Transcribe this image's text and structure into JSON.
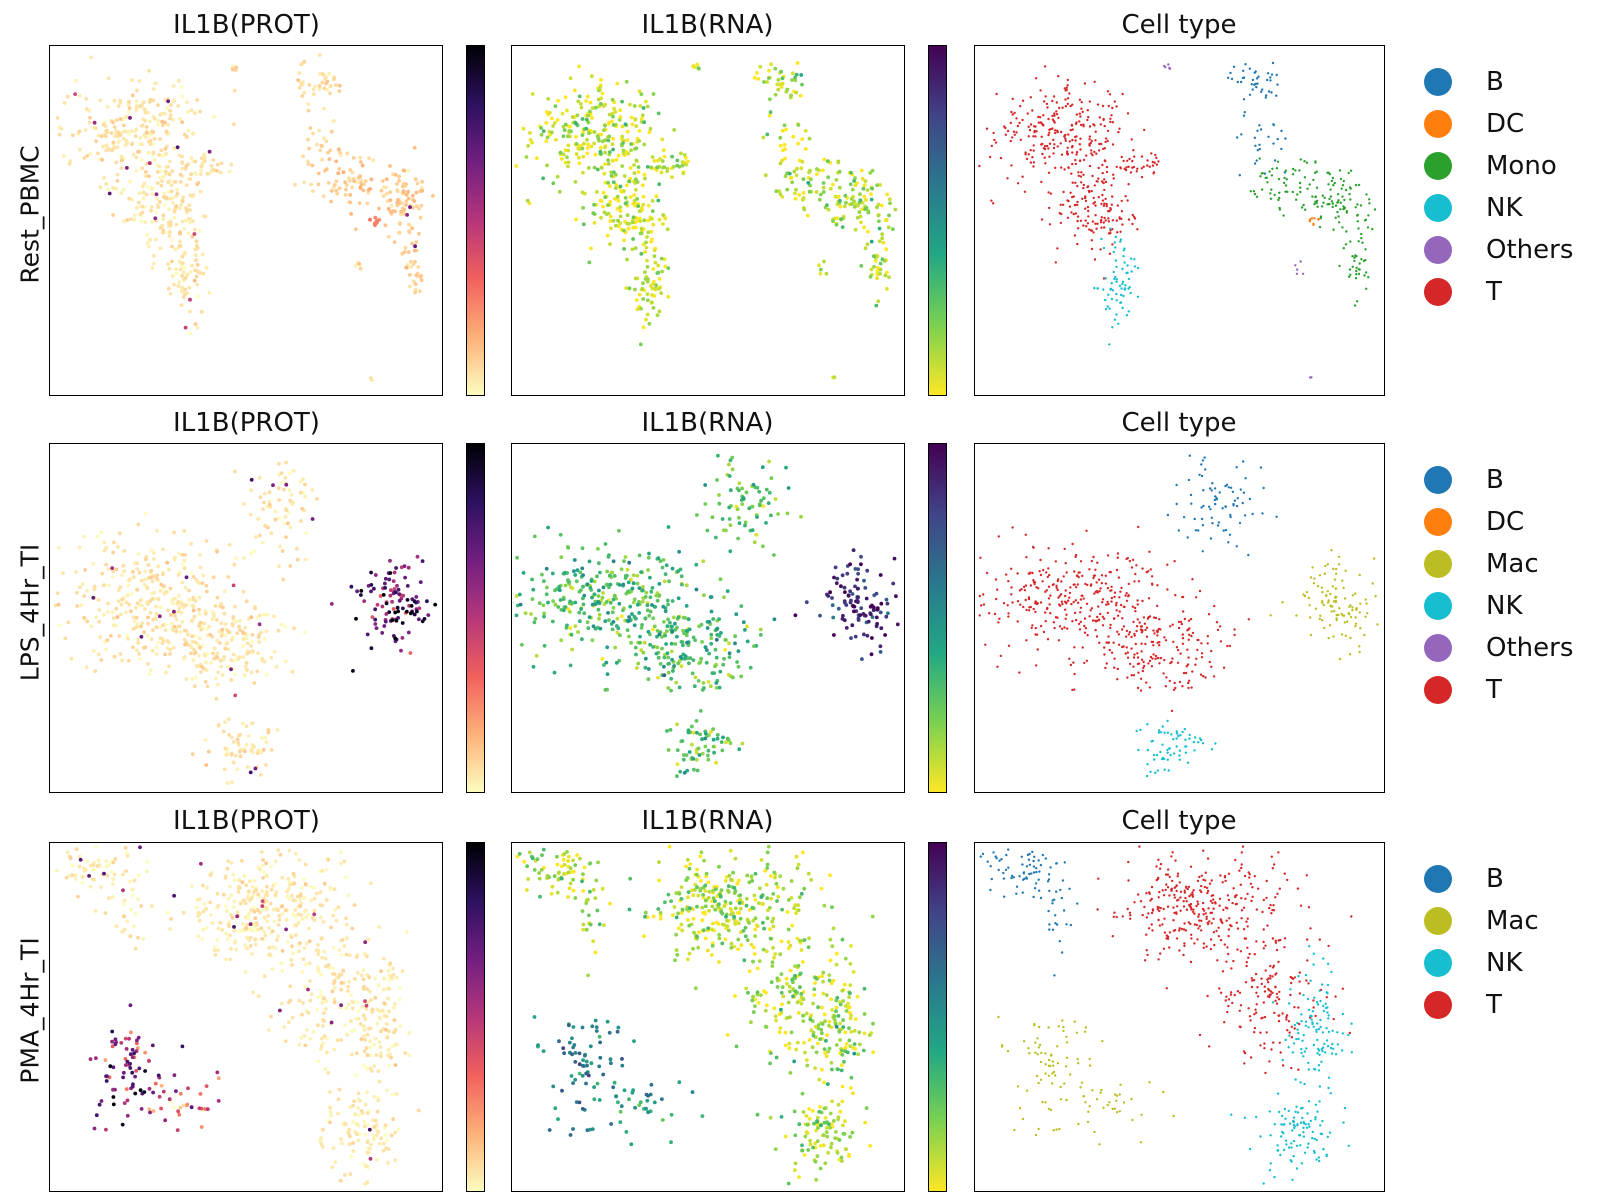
{
  "rows": [
    {
      "label": "Rest_PBMC",
      "titles": {
        "prot": "IL1B(PROT)",
        "rna": "IL1B(RNA)",
        "cell": "Cell type"
      },
      "legend": [
        {
          "label": "B",
          "color": "#1f77b4"
        },
        {
          "label": "DC",
          "color": "#ff7f0e"
        },
        {
          "label": "Mono",
          "color": "#2ca02c"
        },
        {
          "label": "NK",
          "color": "#17becf"
        },
        {
          "label": "Others",
          "color": "#9467bd"
        },
        {
          "label": "T",
          "color": "#d62728"
        }
      ]
    },
    {
      "label": "LPS_4Hr_TI",
      "titles": {
        "prot": "IL1B(PROT)",
        "rna": "IL1B(RNA)",
        "cell": "Cell type"
      },
      "legend": [
        {
          "label": "B",
          "color": "#1f77b4"
        },
        {
          "label": "DC",
          "color": "#ff7f0e"
        },
        {
          "label": "Mac",
          "color": "#bcbd22"
        },
        {
          "label": "NK",
          "color": "#17becf"
        },
        {
          "label": "Others",
          "color": "#9467bd"
        },
        {
          "label": "T",
          "color": "#d62728"
        }
      ]
    },
    {
      "label": "PMA_4Hr_TI",
      "titles": {
        "prot": "IL1B(PROT)",
        "rna": "IL1B(RNA)",
        "cell": "Cell type"
      },
      "legend": [
        {
          "label": "B",
          "color": "#1f77b4"
        },
        {
          "label": "Mac",
          "color": "#bcbd22"
        },
        {
          "label": "NK",
          "color": "#17becf"
        },
        {
          "label": "T",
          "color": "#d62728"
        }
      ]
    }
  ],
  "chart_data": {
    "type": "scatter",
    "colormaps": {
      "prot": "magma_r",
      "rna": "viridis_r"
    },
    "axes_ticks": false,
    "grid": false,
    "legend_placement": "right",
    "panels": [
      {
        "row": "Rest_PBMC",
        "clusters": [
          {
            "label": "T",
            "x": 0.22,
            "y": 0.75,
            "sx": 0.09,
            "sy": 0.07,
            "n": 260,
            "prot": 0.05,
            "rna": 0.06
          },
          {
            "label": "T",
            "x": 0.29,
            "y": 0.54,
            "sx": 0.05,
            "sy": 0.07,
            "n": 150,
            "prot": 0.05,
            "rna": 0.06
          },
          {
            "label": "T",
            "x": 0.4,
            "y": 0.66,
            "sx": 0.03,
            "sy": 0.02,
            "n": 30,
            "prot": 0.05,
            "rna": 0.06
          },
          {
            "label": "NK",
            "x": 0.35,
            "y": 0.35,
            "sx": 0.025,
            "sy": 0.07,
            "n": 70,
            "prot": 0.05,
            "rna": 0.1
          },
          {
            "label": "B",
            "x": 0.69,
            "y": 0.9,
            "sx": 0.03,
            "sy": 0.03,
            "n": 40,
            "prot": 0.07,
            "rna": 0.08
          },
          {
            "label": "B",
            "x": 0.7,
            "y": 0.72,
            "sx": 0.03,
            "sy": 0.05,
            "n": 25,
            "prot": 0.07,
            "rna": 0.08
          },
          {
            "label": "Mono",
            "x": 0.77,
            "y": 0.61,
            "sx": 0.05,
            "sy": 0.04,
            "n": 70,
            "prot": 0.1,
            "rna": 0.1
          },
          {
            "label": "Mono",
            "x": 0.9,
            "y": 0.55,
            "sx": 0.03,
            "sy": 0.06,
            "n": 80,
            "prot": 0.1,
            "rna": 0.1
          },
          {
            "label": "Mono",
            "x": 0.93,
            "y": 0.37,
            "sx": 0.015,
            "sy": 0.05,
            "n": 30,
            "prot": 0.1,
            "rna": 0.1
          },
          {
            "label": "DC",
            "x": 0.83,
            "y": 0.5,
            "sx": 0.008,
            "sy": 0.008,
            "n": 8,
            "prot": 0.25,
            "rna": 0.1
          },
          {
            "label": "Others",
            "x": 0.47,
            "y": 0.94,
            "sx": 0.005,
            "sy": 0.005,
            "n": 5,
            "prot": 0.05,
            "rna": 0.1
          },
          {
            "label": "Others",
            "x": 0.79,
            "y": 0.37,
            "sx": 0.005,
            "sy": 0.015,
            "n": 5,
            "prot": 0.05,
            "rna": 0.1
          },
          {
            "label": "Others",
            "x": 0.82,
            "y": 0.05,
            "sx": 0.003,
            "sy": 0.003,
            "n": 2,
            "prot": 0.05,
            "rna": 0.1
          }
        ]
      },
      {
        "row": "LPS_4Hr_TI",
        "clusters": [
          {
            "label": "T",
            "x": 0.25,
            "y": 0.55,
            "sx": 0.12,
            "sy": 0.08,
            "n": 340,
            "prot": 0.05,
            "rna": 0.28
          },
          {
            "label": "T",
            "x": 0.45,
            "y": 0.42,
            "sx": 0.08,
            "sy": 0.06,
            "n": 170,
            "prot": 0.05,
            "rna": 0.28
          },
          {
            "label": "B",
            "x": 0.59,
            "y": 0.83,
            "sx": 0.05,
            "sy": 0.08,
            "n": 80,
            "prot": 0.05,
            "rna": 0.25
          },
          {
            "label": "NK",
            "x": 0.49,
            "y": 0.13,
            "sx": 0.04,
            "sy": 0.04,
            "n": 65,
            "prot": 0.05,
            "rna": 0.25
          },
          {
            "label": "Mac",
            "x": 0.88,
            "y": 0.54,
            "sx": 0.05,
            "sy": 0.06,
            "n": 110,
            "prot": 0.72,
            "rna": 0.88
          }
        ]
      },
      {
        "row": "PMA_4Hr_TI",
        "clusters": [
          {
            "label": "B",
            "x": 0.12,
            "y": 0.92,
            "sx": 0.06,
            "sy": 0.04,
            "n": 70,
            "prot": 0.04,
            "rna": 0.12
          },
          {
            "label": "B",
            "x": 0.2,
            "y": 0.78,
            "sx": 0.02,
            "sy": 0.05,
            "n": 20,
            "prot": 0.04,
            "rna": 0.12
          },
          {
            "label": "Mac",
            "x": 0.2,
            "y": 0.35,
            "sx": 0.05,
            "sy": 0.08,
            "n": 80,
            "prot": 0.62,
            "rna": 0.55
          },
          {
            "label": "Mac",
            "x": 0.34,
            "y": 0.25,
            "sx": 0.05,
            "sy": 0.04,
            "n": 30,
            "prot": 0.35,
            "rna": 0.45
          },
          {
            "label": "T",
            "x": 0.55,
            "y": 0.82,
            "sx": 0.11,
            "sy": 0.08,
            "n": 330,
            "prot": 0.04,
            "rna": 0.1
          },
          {
            "label": "T",
            "x": 0.72,
            "y": 0.55,
            "sx": 0.07,
            "sy": 0.09,
            "n": 150,
            "prot": 0.04,
            "rna": 0.1
          },
          {
            "label": "NK",
            "x": 0.83,
            "y": 0.48,
            "sx": 0.04,
            "sy": 0.09,
            "n": 110,
            "prot": 0.04,
            "rna": 0.1
          },
          {
            "label": "NK",
            "x": 0.79,
            "y": 0.17,
            "sx": 0.05,
            "sy": 0.06,
            "n": 110,
            "prot": 0.04,
            "rna": 0.1
          }
        ]
      }
    ]
  }
}
